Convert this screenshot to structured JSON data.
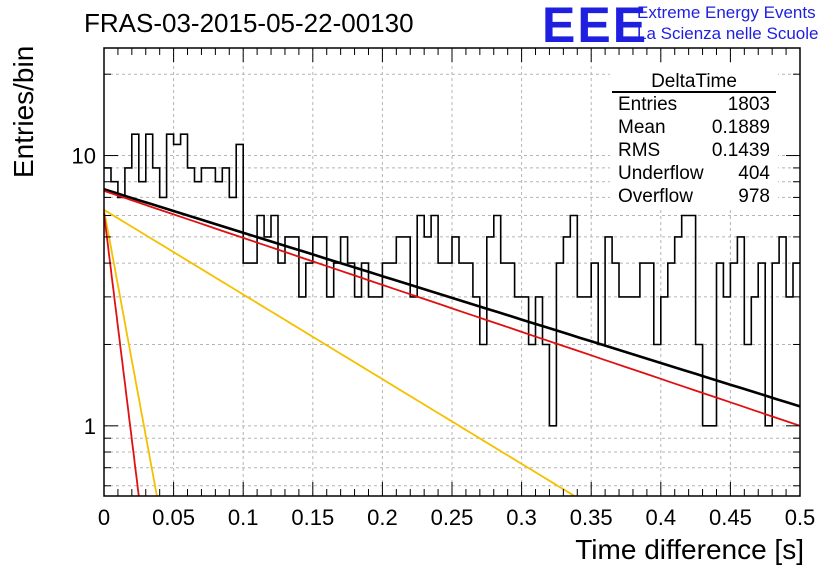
{
  "header": {
    "run_title": "FRAS-03-2015-05-22-00130",
    "logo_letters": "EEE",
    "logo_line1": "Extreme Energy Events",
    "logo_line2": "La Scienza nelle Scuole"
  },
  "stats_box": {
    "title": "DeltaTime",
    "rows": [
      {
        "label": "Entries",
        "value": "1803"
      },
      {
        "label": "Mean",
        "value": "0.1889"
      },
      {
        "label": "RMS",
        "value": "0.1439"
      },
      {
        "label": "Underflow",
        "value": "404"
      },
      {
        "label": "Overflow",
        "value": "978"
      }
    ]
  },
  "chart_data": {
    "type": "line",
    "xlabel": "Time difference [s]",
    "ylabel": "Entries/bin",
    "xlim": [
      0,
      0.5
    ],
    "ylim": [
      0.55,
      25
    ],
    "y_scale": "log",
    "grid": true,
    "x_ticks": [
      "0",
      "0.05",
      "0.1",
      "0.15",
      "0.2",
      "0.25",
      "0.3",
      "0.35",
      "0.4",
      "0.45",
      "0.5"
    ],
    "y_ticks": [
      "1",
      "10"
    ],
    "histogram": {
      "bin_width": 0.005,
      "values": [
        9,
        8,
        7,
        9,
        12,
        8,
        12,
        9,
        7,
        12,
        11,
        12,
        9,
        8,
        9,
        9,
        8,
        9,
        7,
        11,
        4,
        4,
        6,
        5,
        6,
        4,
        5,
        5,
        3,
        4,
        5,
        5,
        3,
        4,
        5,
        4,
        3,
        4,
        3,
        3,
        4,
        4,
        5,
        5,
        3,
        6,
        5,
        6,
        4,
        4,
        5,
        4,
        4,
        3,
        2,
        5,
        6,
        4,
        4,
        3,
        3,
        2,
        3,
        2,
        1,
        4,
        5,
        6,
        3,
        3,
        4,
        2,
        5,
        4,
        3,
        3,
        3,
        4,
        4,
        2,
        3,
        4,
        5,
        6,
        6,
        2,
        1,
        1,
        4,
        3,
        4,
        5,
        2,
        3,
        4,
        1,
        4,
        5,
        3,
        4
      ]
    },
    "series": [
      {
        "color": "#000000",
        "y0": 7.5,
        "y_at_xmax": 1.18,
        "x_end": 0.5
      },
      {
        "color": "#e01010",
        "y0": 7.4,
        "y_at_xmax": 1.0,
        "x_end": 0.5
      },
      {
        "color": "#f5c000",
        "y0": 6.3,
        "y_at_xmax": 0.55,
        "x_end": 0.338
      },
      {
        "color": "#f5c000",
        "y0": 6.3,
        "y_at_xmax": 0.55,
        "x_end": 0.038
      },
      {
        "color": "#e01010",
        "y0": 6.1,
        "y_at_xmax": 0.55,
        "x_end": 0.025
      }
    ]
  }
}
